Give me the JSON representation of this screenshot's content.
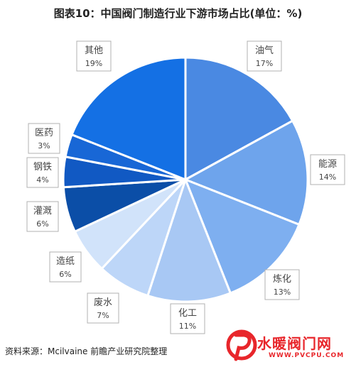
{
  "title": "图表10：中国阀门制造行业下游市场占比(单位：%)",
  "source": "资料来源：Mcilvaine 前瞻产业研究院整理",
  "logo": {
    "name": "水暖阀门网",
    "url": "WWW.PVCPU.COM"
  },
  "colors": {
    "油气": "#4a89e2",
    "能源": "#6ea4ec",
    "炼化": "#7eaff0",
    "化工": "#a8c8f4",
    "废水": "#bdd6f8",
    "造纸": "#d1e3fa",
    "灌溉": "#0b4ea7",
    "钢铁": "#1159c3",
    "医药": "#1867d6",
    "其他": "#1470e4",
    "border": "#ffffff",
    "callout": "#b0b0b0",
    "label_text": "#444444"
  },
  "chart_data": {
    "type": "pie",
    "title": "图表10：中国阀门制造行业下游市场占比(单位：%)",
    "unit": "%",
    "legend": "none",
    "slices": [
      {
        "name": "油气",
        "value": 17,
        "label": "17%"
      },
      {
        "name": "能源",
        "value": 14,
        "label": "14%"
      },
      {
        "name": "炼化",
        "value": 13,
        "label": "13%"
      },
      {
        "name": "化工",
        "value": 11,
        "label": "11%"
      },
      {
        "name": "废水",
        "value": 7,
        "label": "7%"
      },
      {
        "name": "造纸",
        "value": 6,
        "label": "6%"
      },
      {
        "name": "灌溉",
        "value": 6,
        "label": "6%"
      },
      {
        "name": "钢铁",
        "value": 4,
        "label": "4%"
      },
      {
        "name": "医药",
        "value": 3,
        "label": "3%"
      },
      {
        "name": "其他",
        "value": 19,
        "label": "19%"
      }
    ]
  }
}
